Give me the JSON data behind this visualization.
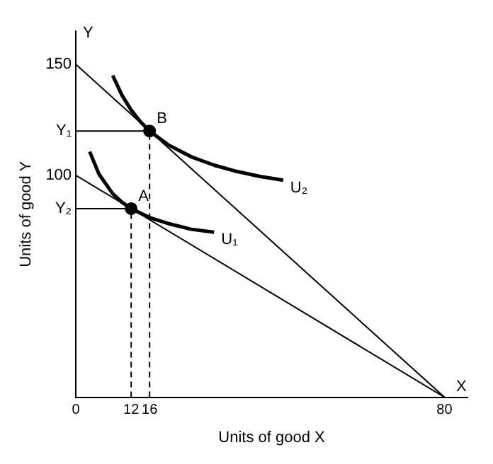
{
  "chart_data": {
    "type": "line",
    "xlabel": "Units of good X",
    "ylabel": "Units of good Y",
    "xlim": [
      0,
      85
    ],
    "ylim": [
      0,
      165
    ],
    "xticks": [
      0,
      12,
      16,
      80
    ],
    "yticks": [
      {
        "value": 85,
        "label": "Y₂"
      },
      100,
      {
        "value": 120,
        "label": "Y₁"
      },
      150
    ],
    "grid": false,
    "legend": false,
    "marker": "none",
    "annotations": [
      "X",
      "Y",
      {
        "text": "A",
        "x": 12,
        "y": 85
      },
      {
        "text": "B",
        "x": 16,
        "y": 120
      }
    ],
    "series": [
      {
        "x": [
          0,
          80
        ],
        "values": [
          150,
          0
        ],
        "color": "#000000",
        "line_style": "solid"
      },
      {
        "x": [
          0,
          80
        ],
        "values": [
          100,
          0
        ],
        "color": "#000000",
        "line_style": "solid"
      },
      {
        "name": "U₂",
        "x": [
          8,
          10,
          12,
          14,
          16,
          20,
          25,
          30,
          35,
          40,
          45
        ],
        "values": [
          145,
          136.1,
          129.4,
          124.2,
          120,
          113.8,
          108.4,
          104.6,
          101.7,
          99.5,
          97.8
        ],
        "color": "#000000",
        "line_style": "solid"
      },
      {
        "name": "U₁",
        "x": [
          3,
          5,
          8,
          10,
          12,
          16,
          20,
          25,
          30
        ],
        "values": [
          110.7,
          100.6,
          91.7,
          87.9,
          85,
          81,
          78.3,
          75.7,
          74.4
        ],
        "color": "#000000",
        "line_style": "solid"
      },
      {
        "x": [
          0,
          16
        ],
        "values": [
          120,
          120
        ],
        "color": "#000000",
        "line_style": "solid"
      },
      {
        "x": [
          0,
          12
        ],
        "values": [
          85,
          85
        ],
        "color": "#000000",
        "line_style": "solid"
      },
      {
        "x": [
          16,
          16
        ],
        "values": [
          0,
          120
        ],
        "color": "#000000",
        "line_style": "dashed"
      },
      {
        "x": [
          12,
          12
        ],
        "values": [
          0,
          85
        ],
        "color": "#000000",
        "line_style": "dashed"
      },
      {
        "type": "scatter",
        "x": [
          12,
          16
        ],
        "values": [
          85,
          120
        ],
        "color": "#000000",
        "marker": "circle"
      }
    ]
  }
}
